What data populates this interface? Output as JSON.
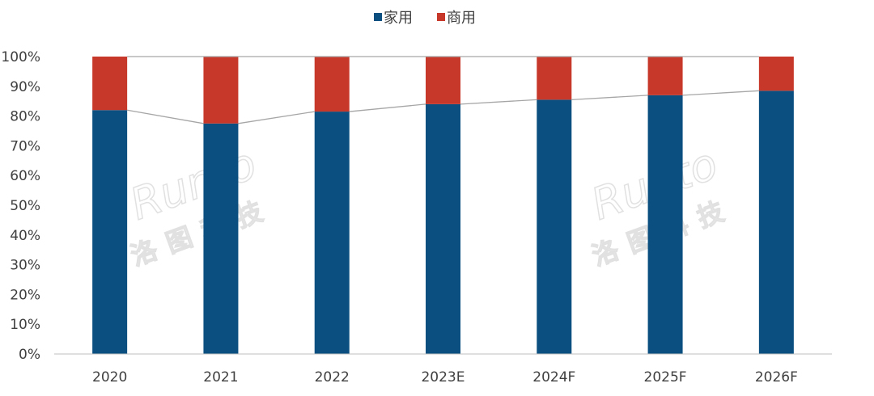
{
  "chart_data": {
    "type": "bar",
    "stacked": true,
    "percent_stacked": true,
    "categories": [
      "2020",
      "2021",
      "2022",
      "2023E",
      "2024F",
      "2025F",
      "2026F"
    ],
    "series": [
      {
        "name": "家用",
        "color": "#0a4f80",
        "values": [
          82,
          77.5,
          81.5,
          84,
          85.5,
          87,
          88.5
        ]
      },
      {
        "name": "商用",
        "color": "#c8382a",
        "values": [
          18,
          22.5,
          18.5,
          16,
          14.5,
          13,
          11.5
        ]
      }
    ],
    "connector_line": {
      "color": "#a6a6a6",
      "follows_series": "家用"
    },
    "ylim": [
      0,
      100
    ],
    "yticks": [
      "0%",
      "10%",
      "20%",
      "30%",
      "40%",
      "50%",
      "60%",
      "70%",
      "80%",
      "90%",
      "100%"
    ],
    "legend_position": "top-center",
    "grid": false
  },
  "watermark": {
    "brand_text": "Runto",
    "chinese_text": "洛图科技"
  }
}
